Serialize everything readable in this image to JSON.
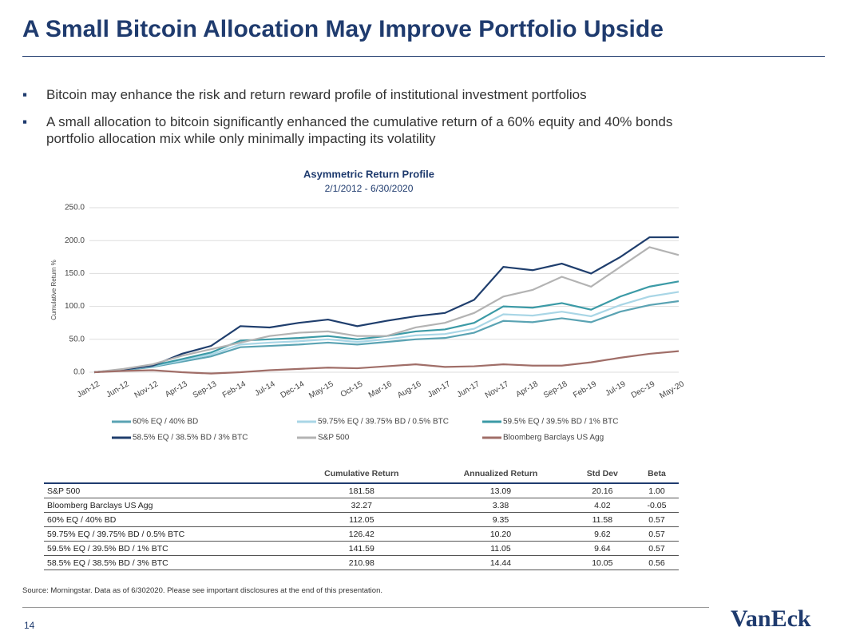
{
  "header": {
    "title": "A Small Bitcoin Allocation May Improve Portfolio Upside"
  },
  "bullets": [
    "Bitcoin may enhance the risk and return reward profile of institutional investment portfolios",
    "A small allocation to bitcoin significantly enhanced the cumulative return of a 60% equity and 40% bonds portfolio allocation mix while only minimally impacting its volatility"
  ],
  "chart_data": {
    "type": "line",
    "title": "Asymmetric Return Profile",
    "subtitle": "2/1/2012 - 6/30/2020",
    "y_label": "Cumulative Return %",
    "categories": [
      "Jan-12",
      "Jun-12",
      "Nov-12",
      "Apr-13",
      "Sep-13",
      "Feb-14",
      "Jul-14",
      "Dec-14",
      "May-15",
      "Oct-15",
      "Mar-16",
      "Aug-16",
      "Jan-17",
      "Jun-17",
      "Nov-17",
      "Apr-18",
      "Sep-18",
      "Feb-19",
      "Jul-19",
      "Dec-19",
      "May-20"
    ],
    "ylim": [
      0,
      250
    ],
    "yticks": [
      {
        "value": 0,
        "label": "0.0"
      },
      {
        "value": 50,
        "label": "50.0"
      },
      {
        "value": 100,
        "label": "100.0"
      },
      {
        "value": 150,
        "label": "150.0"
      },
      {
        "value": 200,
        "label": "200.0"
      },
      {
        "value": 250,
        "label": "250.0"
      }
    ],
    "grid": true,
    "series": [
      {
        "name": "60% EQ / 40% BD",
        "color": "#5aa3b3",
        "values": [
          0,
          3,
          8,
          16,
          24,
          38,
          40,
          42,
          45,
          42,
          46,
          50,
          52,
          60,
          78,
          76,
          82,
          76,
          92,
          102,
          108
        ]
      },
      {
        "name": "59.75% EQ / 39.75% BD / 0.5% BTC",
        "color": "#a9d6e6",
        "values": [
          0,
          4,
          9,
          18,
          27,
          42,
          45,
          47,
          50,
          46,
          50,
          56,
          58,
          66,
          88,
          86,
          92,
          85,
          102,
          115,
          122
        ]
      },
      {
        "name": "59.5% EQ / 39.5% BD / 1% BTC",
        "color": "#3b9aa6",
        "values": [
          0,
          4,
          10,
          20,
          30,
          48,
          50,
          52,
          55,
          50,
          55,
          62,
          65,
          75,
          100,
          98,
          105,
          95,
          115,
          130,
          138
        ]
      },
      {
        "name": "58.5% EQ / 38.5% BD / 3% BTC",
        "color": "#1f3e6d",
        "values": [
          0,
          4,
          10,
          28,
          40,
          70,
          68,
          75,
          80,
          70,
          78,
          85,
          90,
          110,
          160,
          155,
          165,
          150,
          175,
          205,
          205
        ]
      },
      {
        "name": "S&P 500",
        "color": "#b3b3b3",
        "values": [
          0,
          5,
          12,
          25,
          35,
          45,
          55,
          60,
          62,
          55,
          55,
          68,
          75,
          90,
          115,
          125,
          145,
          130,
          160,
          190,
          178
        ]
      },
      {
        "name": "Bloomberg Barclays US Agg",
        "color": "#a06e68",
        "values": [
          0,
          2,
          3,
          0,
          -2,
          0,
          3,
          5,
          7,
          6,
          9,
          12,
          8,
          9,
          12,
          10,
          10,
          15,
          22,
          28,
          32
        ]
      }
    ]
  },
  "table": {
    "columns": [
      "Cumulative Return",
      "Annualized Return",
      "Std Dev",
      "Beta"
    ],
    "rows": [
      [
        "S&P 500",
        "181.58",
        "13.09",
        "20.16",
        "1.00"
      ],
      [
        "Bloomberg Barclays US Agg",
        "32.27",
        "3.38",
        "4.02",
        "-0.05"
      ],
      [
        "60% EQ / 40% BD",
        "112.05",
        "9.35",
        "11.58",
        "0.57"
      ],
      [
        "59.75% EQ / 39.75% BD / 0.5% BTC",
        "126.42",
        "10.20",
        "9.62",
        "0.57"
      ],
      [
        "59.5% EQ / 39.5% BD / 1% BTC",
        "141.59",
        "11.05",
        "9.64",
        "0.57"
      ],
      [
        "58.5% EQ / 38.5% BD / 3% BTC",
        "210.98",
        "14.44",
        "10.05",
        "0.56"
      ]
    ]
  },
  "footer": {
    "source": "Source: Morningstar. Data as of 6/302020. Please see important disclosures at the end of this presentation.",
    "page": "14",
    "logo": "VanEck"
  }
}
